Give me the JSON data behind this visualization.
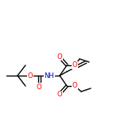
{
  "bg_color": "#ffffff",
  "line_color": "#000000",
  "oxygen_color": "#ff0000",
  "nitrogen_color": "#0000cc",
  "bond_lw": 1.0,
  "figsize": [
    1.52,
    1.52
  ],
  "dpi": 100,
  "xlim": [
    0,
    152
  ],
  "ylim": [
    0,
    152
  ]
}
